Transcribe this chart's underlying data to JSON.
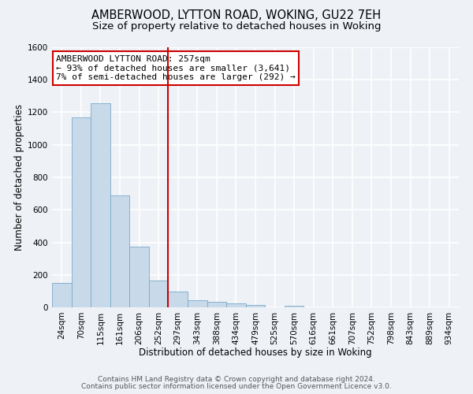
{
  "title": "AMBERWOOD, LYTTON ROAD, WOKING, GU22 7EH",
  "subtitle": "Size of property relative to detached houses in Woking",
  "xlabel": "Distribution of detached houses by size in Woking",
  "ylabel": "Number of detached properties",
  "bin_labels": [
    "24sqm",
    "70sqm",
    "115sqm",
    "161sqm",
    "206sqm",
    "252sqm",
    "297sqm",
    "343sqm",
    "388sqm",
    "434sqm",
    "479sqm",
    "525sqm",
    "570sqm",
    "616sqm",
    "661sqm",
    "707sqm",
    "752sqm",
    "798sqm",
    "843sqm",
    "889sqm",
    "934sqm"
  ],
  "bar_heights": [
    150,
    1170,
    1255,
    688,
    375,
    165,
    95,
    42,
    35,
    22,
    15,
    0,
    12,
    0,
    0,
    0,
    0,
    0,
    0,
    0,
    0
  ],
  "bar_color": "#c8d9ea",
  "bar_edge_color": "#7aaac8",
  "vline_color": "#cc0000",
  "vline_x": 5.5,
  "annotation_text": "AMBERWOOD LYTTON ROAD: 257sqm\n← 93% of detached houses are smaller (3,641)\n7% of semi-detached houses are larger (292) →",
  "annotation_box_color": "#ffffff",
  "annotation_box_edge": "#cc0000",
  "ylim": [
    0,
    1600
  ],
  "yticks": [
    0,
    200,
    400,
    600,
    800,
    1000,
    1200,
    1400,
    1600
  ],
  "footer_line1": "Contains HM Land Registry data © Crown copyright and database right 2024.",
  "footer_line2": "Contains public sector information licensed under the Open Government Licence v3.0.",
  "background_color": "#eef2f7",
  "grid_color": "#ffffff",
  "title_fontsize": 10.5,
  "subtitle_fontsize": 9.5,
  "axis_label_fontsize": 8.5,
  "tick_fontsize": 7.5,
  "footer_fontsize": 6.5,
  "annot_fontsize": 8
}
